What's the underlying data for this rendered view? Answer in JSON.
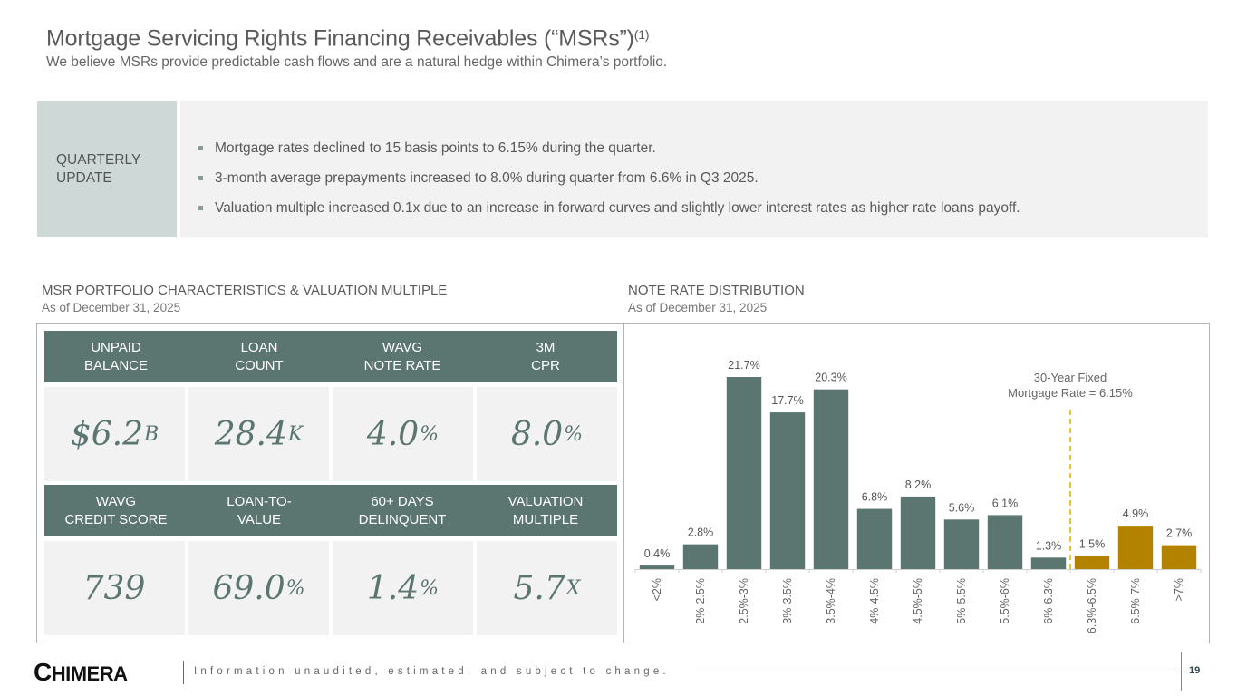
{
  "header": {
    "title": "Mortgage Servicing Rights Financing Receivables (“MSRs”)",
    "title_footnote": "(1)",
    "subtitle": "We believe MSRs provide predictable cash flows and are a natural hedge within Chimera’s portfolio."
  },
  "quarterly_update": {
    "label_line1": "QUARTERLY",
    "label_line2": "UPDATE",
    "bullets": [
      "Mortgage rates declined to 15 basis points to 6.15% during the quarter.",
      "3-month average prepayments increased to 8.0% during quarter from 6.6% in Q3 2025.",
      "Valuation multiple increased 0.1x due to an increase in forward curves and slightly lower interest rates as higher rate loans payoff."
    ]
  },
  "portfolio": {
    "heading": "MSR PORTFOLIO CHARACTERISTICS & VALUATION MULTIPLE",
    "as_of": "As of December 31, 2025",
    "metrics_row1": [
      {
        "label1": "UNPAID",
        "label2": "BALANCE",
        "value": "$6.2",
        "unit": "B"
      },
      {
        "label1": "LOAN",
        "label2": "COUNT",
        "value": "28.4",
        "unit": "K"
      },
      {
        "label1": "WAVG",
        "label2": "NOTE RATE",
        "value": "4.0",
        "unit": "%"
      },
      {
        "label1": "3M",
        "label2": "CPR",
        "value": "8.0",
        "unit": "%"
      }
    ],
    "metrics_row2": [
      {
        "label1": "WAVG",
        "label2": "CREDIT SCORE",
        "value": "739",
        "unit": ""
      },
      {
        "label1": "LOAN-TO-",
        "label2": "VALUE",
        "value": "69.0",
        "unit": "%"
      },
      {
        "label1": "60+ DAYS",
        "label2": "DELINQUENT",
        "value": "1.4",
        "unit": "%"
      },
      {
        "label1": "VALUATION",
        "label2": "MULTIPLE",
        "value": "5.7",
        "unit": "X"
      }
    ]
  },
  "distribution": {
    "heading": "NOTE RATE DISTRIBUTION",
    "as_of": "As of December 31, 2025"
  },
  "chart_data": {
    "type": "bar",
    "title": "NOTE RATE DISTRIBUTION",
    "subtitle": "As of December 31, 2025",
    "xlabel": "",
    "ylabel": "",
    "categories": [
      "<2%",
      "2%-2.5%",
      "2.5%-3%",
      "3%-3.5%",
      "3.5%-4%",
      "4%-4.5%",
      "4.5%-5%",
      "5%-5.5%",
      "5.5%-6%",
      "6%-6.3%",
      "6.3%-6.5%",
      "6.5%-7%",
      ">7%"
    ],
    "values": [
      0.4,
      2.8,
      21.7,
      17.7,
      20.3,
      6.8,
      8.2,
      5.6,
      6.1,
      1.3,
      1.5,
      4.9,
      2.7
    ],
    "data_labels": [
      "0.4%",
      "2.8%",
      "21.7%",
      "17.7%",
      "20.3%",
      "6.8%",
      "8.2%",
      "5.6%",
      "6.1%",
      "1.3%",
      "1.5%",
      "4.9%",
      "2.7%"
    ],
    "highlight_from_index": 10,
    "ylim": [
      0,
      24
    ],
    "grid": false,
    "reference_line": {
      "after_category_index": 9,
      "label_line1": "30-Year Fixed",
      "label_line2": "Mortgage Rate = 6.15%",
      "value": 6.15
    },
    "colors": {
      "base": "#5b7571",
      "highlight": "#b38300",
      "reference": "#e0b000",
      "label": "#555555"
    }
  },
  "footer": {
    "logo": "CHIMERA",
    "note": "Information unaudited, estimated, and subject to change.",
    "page": "19"
  }
}
